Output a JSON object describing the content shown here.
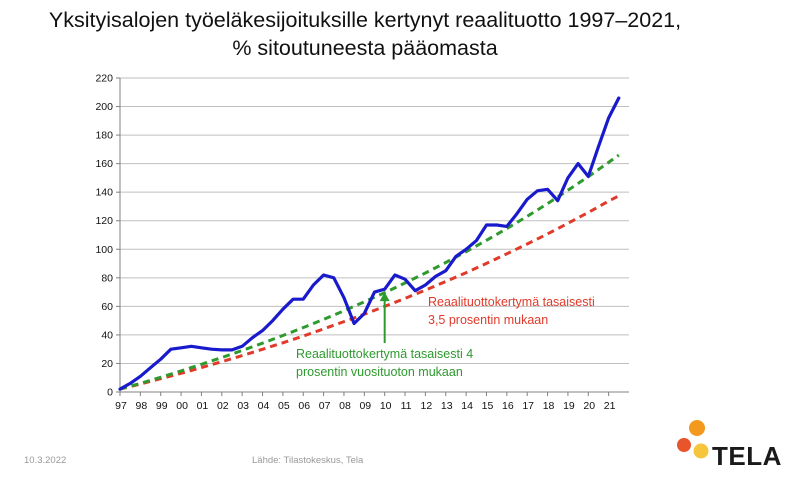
{
  "slide": {
    "title_line1": "Yksityisalojen työeläkesijoituksille kertynyt reaalituotto 1997–2021,",
    "title_line2": "% sitoutuneesta pääomasta",
    "date": "10.3.2022",
    "source": "Lähde: Tilastokeskus, Tela",
    "logo_text": "TELA"
  },
  "colors": {
    "actual": "#1a1acd",
    "green": "#2e9a2e",
    "red": "#e03a2a",
    "axis": "#808080",
    "grid": "#bfbfbf",
    "logo_orange": "#f39a1e",
    "logo_yellow": "#f6c53b",
    "logo_red": "#e8542b"
  },
  "chart_data": {
    "type": "line",
    "ylim": [
      0,
      220
    ],
    "ytick_values": [
      0,
      20,
      40,
      60,
      80,
      100,
      120,
      140,
      160,
      180,
      200,
      220
    ],
    "ytick_labels": [
      "0",
      "20",
      "40",
      "60",
      "80",
      "100",
      "120",
      "140",
      "160",
      "180",
      "200",
      "220"
    ],
    "xlim": [
      1997.0,
      2022.0
    ],
    "xtick_positions": [
      1997,
      1998,
      1999,
      2000,
      2001,
      2002,
      2003,
      2004,
      2005,
      2006,
      2007,
      2008,
      2009,
      2010,
      2011,
      2012,
      2013,
      2014,
      2015,
      2016,
      2017,
      2018,
      2019,
      2020,
      2021
    ],
    "xtick_labels": [
      "97",
      "98",
      "99",
      "00",
      "01",
      "02",
      "03",
      "04",
      "05",
      "06",
      "07",
      "08",
      "09",
      "10",
      "11",
      "12",
      "13",
      "14",
      "15",
      "16",
      "17",
      "18",
      "19",
      "20",
      "21"
    ],
    "grid": "horizontal",
    "series": [
      {
        "key": "actual",
        "x": [
          1997.0,
          1997.5,
          1998.0,
          1998.5,
          1999.0,
          1999.5,
          2000.0,
          2000.5,
          2001.0,
          2001.5,
          2002.0,
          2002.5,
          2003.0,
          2003.5,
          2004.0,
          2004.5,
          2005.0,
          2005.5,
          2006.0,
          2006.5,
          2007.0,
          2007.5,
          2008.0,
          2008.5,
          2009.0,
          2009.5,
          2010.0,
          2010.5,
          2011.0,
          2011.5,
          2012.0,
          2012.5,
          2013.0,
          2013.5,
          2014.0,
          2014.5,
          2015.0,
          2015.5,
          2016.0,
          2016.5,
          2017.0,
          2017.5,
          2018.0,
          2018.5,
          2019.0,
          2019.5,
          2020.0,
          2020.5,
          2021.0,
          2021.5
        ],
        "y": [
          2,
          6,
          11,
          17,
          23,
          30,
          31,
          32,
          31,
          30,
          29.5,
          29.5,
          32,
          38,
          43,
          50,
          58,
          65,
          65,
          75,
          82,
          80,
          66,
          48,
          55,
          70,
          72,
          82,
          79,
          71,
          75,
          81,
          85,
          95,
          100,
          106,
          117,
          117,
          116,
          125,
          135,
          141,
          142,
          134,
          150,
          160,
          151,
          172,
          192,
          206
        ]
      },
      {
        "key": "green",
        "name": "Reaalituottokertymä tasaisesti 4 prosentin vuosituoton mukaan",
        "dashed": true,
        "x": [
          1997.0,
          1998.0,
          1999.0,
          2000.0,
          2001.0,
          2002.0,
          2003.0,
          2004.0,
          2005.0,
          2006.0,
          2007.0,
          2008.0,
          2009.0,
          2010.0,
          2011.0,
          2012.0,
          2013.0,
          2014.0,
          2015.0,
          2016.0,
          2017.0,
          2018.0,
          2019.0,
          2020.0,
          2021.0,
          2021.5
        ],
        "y": [
          2,
          6.1,
          10.3,
          14.8,
          19.4,
          24.2,
          29.1,
          34.2,
          39.6,
          45.1,
          50.9,
          56.9,
          63.2,
          69.6,
          76.4,
          83.4,
          90.7,
          98.3,
          106.3,
          114.5,
          123.1,
          132.0,
          141.3,
          150.9,
          160.9,
          166
        ]
      },
      {
        "key": "red",
        "name": "Reaalituottokertymä tasaisesti 3,5 prosentin mukaan",
        "dashed": true,
        "x": [
          1997.0,
          1998.0,
          1999.0,
          2000.0,
          2001.0,
          2002.0,
          2003.0,
          2004.0,
          2005.0,
          2006.0,
          2007.0,
          2008.0,
          2009.0,
          2010.0,
          2011.0,
          2012.0,
          2013.0,
          2014.0,
          2015.0,
          2016.0,
          2017.0,
          2018.0,
          2019.0,
          2020.0,
          2021.0,
          2021.5
        ],
        "y": [
          2,
          5.6,
          9.3,
          13.1,
          17.1,
          21.2,
          25.5,
          29.9,
          34.5,
          39.2,
          44.2,
          49.3,
          54.5,
          60.0,
          65.6,
          71.4,
          77.4,
          83.6,
          90.1,
          96.8,
          103.7,
          110.8,
          118.2,
          125.8,
          133.7,
          137.5
        ]
      }
    ],
    "annotations": [
      {
        "key": "red",
        "lines": [
          "Reaalituottokertymä tasaisesti",
          "3,5 prosentin mukaan"
        ]
      },
      {
        "key": "green",
        "lines": [
          "Reaalituottokertymä tasaisesti 4",
          "prosentin vuosituoton mukaan"
        ],
        "arrow_to": {
          "x": 2010.0,
          "y": 70
        }
      }
    ]
  }
}
